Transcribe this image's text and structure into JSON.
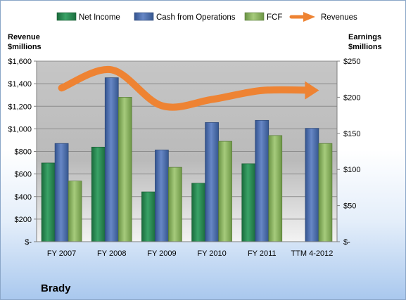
{
  "caption": "Brady",
  "chart_data": {
    "type": "bar",
    "categories": [
      "FY 2007",
      "FY 2008",
      "FY 2009",
      "FY 2010",
      "FY 2011",
      "TTM 4-2012"
    ],
    "left_axis": {
      "title_line1": "Revenue",
      "title_line2": "$millions",
      "ylim": [
        0,
        1600
      ],
      "ticks": [
        0,
        200,
        400,
        600,
        800,
        1000,
        1200,
        1400,
        1600
      ],
      "tick_labels": [
        "$-",
        "$200",
        "$400",
        "$600",
        "$800",
        "$1,000",
        "$1,200",
        "$1,400",
        "$1,600"
      ]
    },
    "right_axis": {
      "title_line1": "Earnings",
      "title_line2": "$millions",
      "ylim": [
        0,
        250
      ],
      "ticks": [
        0,
        50,
        100,
        150,
        200,
        250
      ],
      "tick_labels": [
        "$-",
        "$50",
        "$100",
        "$150",
        "$200",
        "$250"
      ]
    },
    "series": [
      {
        "name": "Net Income",
        "axis": "right",
        "kind": "bar",
        "color": "#2e8b57",
        "values": [
          109,
          131,
          69,
          81,
          108,
          null
        ]
      },
      {
        "name": "Cash from Operations",
        "axis": "right",
        "kind": "bar",
        "color": "#4f73b6",
        "values": [
          136,
          227,
          127,
          165,
          168,
          157
        ]
      },
      {
        "name": "FCF",
        "axis": "right",
        "kind": "bar",
        "color": "#8fb865",
        "values": [
          84,
          200,
          103,
          139,
          147,
          136
        ]
      },
      {
        "name": "Revenues",
        "axis": "left",
        "kind": "arrow-line",
        "color": "#ee8333",
        "values": [
          1362,
          1523,
          1205,
          1260,
          1340,
          1341
        ]
      }
    ],
    "legend_position": "top",
    "grid": true
  }
}
